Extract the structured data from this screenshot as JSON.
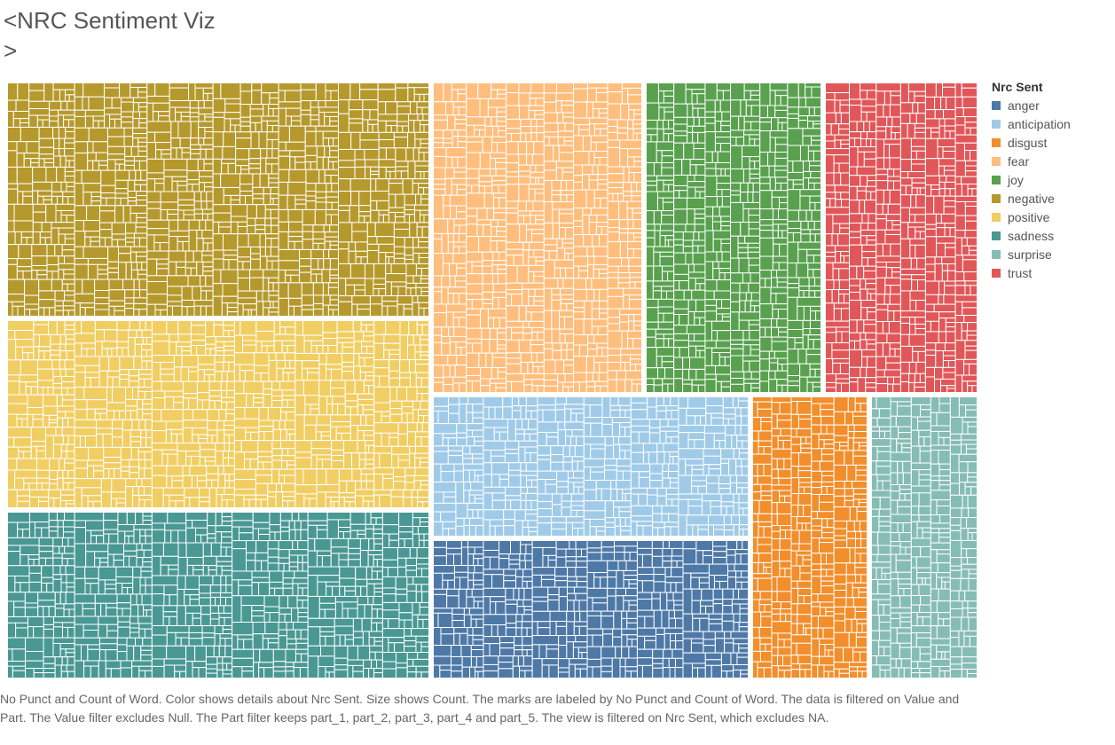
{
  "title": "<NRC Sentiment Viz\n>",
  "caption": "No Punct and Count of Word.  Color shows details about Nrc Sent.  Size shows Count.  The marks are labeled by No Punct and Count of Word. The data is filtered on Value and Part. The Value filter excludes Null. The Part filter keeps part_1, part_2, part_3, part_4 and part_5. The view is filtered on Nrc Sent, which excludes NA.",
  "legend": {
    "title": "Nrc Sent",
    "items": [
      {
        "label": "anger",
        "color": "#4e79a7"
      },
      {
        "label": "anticipation",
        "color": "#a0cbe8"
      },
      {
        "label": "disgust",
        "color": "#f28e2b"
      },
      {
        "label": "fear",
        "color": "#ffbe7d"
      },
      {
        "label": "joy",
        "color": "#59a14f"
      },
      {
        "label": "negative",
        "color": "#b6992d"
      },
      {
        "label": "positive",
        "color": "#f1ce63"
      },
      {
        "label": "sadness",
        "color": "#499894"
      },
      {
        "label": "surprise",
        "color": "#86bcb6"
      },
      {
        "label": "trust",
        "color": "#e15759"
      }
    ]
  },
  "chart_data": {
    "type": "treemap",
    "color_by": "Nrc Sent",
    "size_by": "Count",
    "categories": [
      {
        "name": "negative",
        "relative_size": 0.172
      },
      {
        "name": "fear",
        "relative_size": 0.106
      },
      {
        "name": "joy",
        "relative_size": 0.082
      },
      {
        "name": "trust",
        "relative_size": 0.075
      },
      {
        "name": "positive",
        "relative_size": 0.141
      },
      {
        "name": "anticipation",
        "relative_size": 0.073
      },
      {
        "name": "disgust",
        "relative_size": 0.067
      },
      {
        "name": "surprise",
        "relative_size": 0.055
      },
      {
        "name": "sadness",
        "relative_size": 0.123
      },
      {
        "name": "anger",
        "relative_size": 0.058
      }
    ]
  }
}
